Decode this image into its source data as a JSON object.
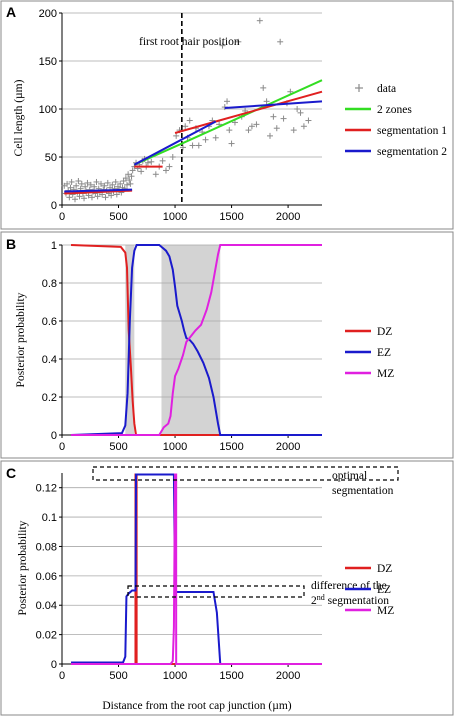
{
  "chart_data": [
    {
      "panel": "A",
      "type": "scatter",
      "ylabel": "Cell length (µm)",
      "xlim": [
        0,
        2300
      ],
      "ylim": [
        0,
        200
      ],
      "xticks": [
        0,
        500,
        1000,
        1500,
        2000
      ],
      "yticks": [
        0,
        50,
        100,
        150,
        200
      ],
      "grid": true,
      "legend_placement": "right",
      "annotation": "first root hair position",
      "vline_x": 1060,
      "scatter": {
        "name": "data",
        "color": "#8a8a8a",
        "points": [
          [
            20,
            20
          ],
          [
            35,
            12
          ],
          [
            45,
            22
          ],
          [
            55,
            15
          ],
          [
            65,
            8
          ],
          [
            75,
            18
          ],
          [
            85,
            24
          ],
          [
            95,
            11
          ],
          [
            105,
            16
          ],
          [
            115,
            6
          ],
          [
            125,
            20
          ],
          [
            135,
            13
          ],
          [
            145,
            25
          ],
          [
            155,
            9
          ],
          [
            165,
            17
          ],
          [
            175,
            22
          ],
          [
            185,
            12
          ],
          [
            195,
            7
          ],
          [
            205,
            19
          ],
          [
            215,
            14
          ],
          [
            225,
            23
          ],
          [
            235,
            10
          ],
          [
            245,
            16
          ],
          [
            255,
            21
          ],
          [
            265,
            8
          ],
          [
            275,
            14
          ],
          [
            285,
            19
          ],
          [
            295,
            12
          ],
          [
            305,
            24
          ],
          [
            315,
            9
          ],
          [
            325,
            17
          ],
          [
            335,
            13
          ],
          [
            345,
            22
          ],
          [
            355,
            11
          ],
          [
            365,
            16
          ],
          [
            375,
            20
          ],
          [
            385,
            8
          ],
          [
            395,
            15
          ],
          [
            405,
            23
          ],
          [
            415,
            12
          ],
          [
            425,
            18
          ],
          [
            435,
            10
          ],
          [
            445,
            21
          ],
          [
            455,
            14
          ],
          [
            465,
            17
          ],
          [
            475,
            24
          ],
          [
            485,
            11
          ],
          [
            495,
            19
          ],
          [
            505,
            15
          ],
          [
            515,
            22
          ],
          [
            525,
            13
          ],
          [
            535,
            18
          ],
          [
            545,
            25
          ],
          [
            555,
            17
          ],
          [
            565,
            28
          ],
          [
            575,
            21
          ],
          [
            585,
            32
          ],
          [
            595,
            26
          ],
          [
            605,
            22
          ],
          [
            615,
            30
          ],
          [
            625,
            36
          ],
          [
            640,
            40
          ],
          [
            655,
            44
          ],
          [
            670,
            38
          ],
          [
            685,
            42
          ],
          [
            700,
            35
          ],
          [
            715,
            46
          ],
          [
            730,
            48
          ],
          [
            745,
            40
          ],
          [
            760,
            44
          ],
          [
            790,
            45
          ],
          [
            830,
            32
          ],
          [
            860,
            40
          ],
          [
            890,
            46
          ],
          [
            920,
            36
          ],
          [
            950,
            40
          ],
          [
            980,
            50
          ],
          [
            1010,
            72
          ],
          [
            1040,
            78
          ],
          [
            1070,
            60
          ],
          [
            1090,
            82
          ],
          [
            1110,
            70
          ],
          [
            1130,
            88
          ],
          [
            1155,
            62
          ],
          [
            1185,
            80
          ],
          [
            1210,
            62
          ],
          [
            1240,
            76
          ],
          [
            1270,
            68
          ],
          [
            1300,
            82
          ],
          [
            1330,
            88
          ],
          [
            1360,
            70
          ],
          [
            1390,
            84
          ],
          [
            1420,
            166
          ],
          [
            1440,
            102
          ],
          [
            1460,
            108
          ],
          [
            1480,
            78
          ],
          [
            1500,
            64
          ],
          [
            1530,
            86
          ],
          [
            1560,
            170
          ],
          [
            1590,
            92
          ],
          [
            1620,
            98
          ],
          [
            1650,
            78
          ],
          [
            1680,
            82
          ],
          [
            1720,
            84
          ],
          [
            1750,
            192
          ],
          [
            1780,
            122
          ],
          [
            1810,
            108
          ],
          [
            1840,
            72
          ],
          [
            1870,
            92
          ],
          [
            1900,
            80
          ],
          [
            1930,
            170
          ],
          [
            1960,
            90
          ],
          [
            1990,
            106
          ],
          [
            2020,
            118
          ],
          [
            2050,
            78
          ],
          [
            2080,
            100
          ],
          [
            2110,
            96
          ],
          [
            2140,
            82
          ],
          [
            2180,
            88
          ]
        ]
      },
      "series": [
        {
          "name": "2 zones",
          "color": "#33dd22",
          "segments": [
            [
              [
                640,
                42
              ],
              [
                1060,
                64
              ],
              [
                2300,
                130
              ]
            ]
          ]
        },
        {
          "name": "segmentation 1",
          "color": "#e02020",
          "segments": [
            [
              [
                20,
                12
              ],
              [
                620,
                15
              ]
            ],
            [
              [
                640,
                40
              ],
              [
                890,
                40
              ]
            ],
            [
              [
                1000,
                75
              ],
              [
                1360,
                87
              ],
              [
                2300,
                118
              ]
            ]
          ]
        },
        {
          "name": "segmentation 2",
          "color": "#1a1acc",
          "segments": [
            [
              [
                20,
                14
              ],
              [
                620,
                16
              ]
            ],
            [
              [
                640,
                42
              ],
              [
                1360,
                87
              ]
            ],
            [
              [
                1440,
                101
              ],
              [
                2300,
                108
              ]
            ]
          ]
        }
      ]
    },
    {
      "panel": "B",
      "type": "line",
      "ylabel": "Posterior probability",
      "xlim": [
        0,
        2300
      ],
      "ylim": [
        0,
        1
      ],
      "xticks": [
        0,
        500,
        1000,
        1500,
        2000
      ],
      "yticks": [
        0,
        0.2,
        0.4,
        0.6,
        0.8,
        1
      ],
      "ytick_labels": [
        "0",
        "0.2",
        "0.4",
        "0.6",
        "0.8",
        "1"
      ],
      "grid": true,
      "legend_placement": "right",
      "shaded_regions": [
        [
          560,
          640
        ],
        [
          880,
          1400
        ]
      ],
      "series": [
        {
          "name": "DZ",
          "color": "#e02020",
          "points": [
            [
              80,
              1
            ],
            [
              520,
              0.99
            ],
            [
              560,
              0.96
            ],
            [
              575,
              0.88
            ],
            [
              590,
              0.55
            ],
            [
              610,
              0.35
            ],
            [
              625,
              0.18
            ],
            [
              640,
              0.06
            ],
            [
              655,
              0
            ],
            [
              2300,
              0
            ]
          ]
        },
        {
          "name": "EZ",
          "color": "#1a1acc",
          "points": [
            [
              80,
              0
            ],
            [
              530,
              0.01
            ],
            [
              560,
              0.05
            ],
            [
              580,
              0.22
            ],
            [
              600,
              0.6
            ],
            [
              620,
              0.88
            ],
            [
              640,
              0.97
            ],
            [
              660,
              1
            ],
            [
              860,
              1
            ],
            [
              880,
              0.99
            ],
            [
              920,
              0.97
            ],
            [
              950,
              0.94
            ],
            [
              980,
              0.87
            ],
            [
              1000,
              0.78
            ],
            [
              1020,
              0.68
            ],
            [
              1040,
              0.64
            ],
            [
              1060,
              0.6
            ],
            [
              1080,
              0.55
            ],
            [
              1100,
              0.51
            ],
            [
              1130,
              0.5
            ],
            [
              1160,
              0.48
            ],
            [
              1200,
              0.44
            ],
            [
              1250,
              0.38
            ],
            [
              1300,
              0.3
            ],
            [
              1340,
              0.2
            ],
            [
              1380,
              0.06
            ],
            [
              1400,
              0
            ],
            [
              2300,
              0
            ]
          ]
        },
        {
          "name": "MZ",
          "color": "#e020e0",
          "points": [
            [
              80,
              0
            ],
            [
              860,
              0
            ],
            [
              870,
              0.01
            ],
            [
              900,
              0.04
            ],
            [
              940,
              0.06
            ],
            [
              960,
              0.1
            ],
            [
              980,
              0.22
            ],
            [
              1000,
              0.31
            ],
            [
              1030,
              0.35
            ],
            [
              1070,
              0.42
            ],
            [
              1100,
              0.49
            ],
            [
              1140,
              0.52
            ],
            [
              1180,
              0.55
            ],
            [
              1230,
              0.58
            ],
            [
              1280,
              0.66
            ],
            [
              1320,
              0.75
            ],
            [
              1350,
              0.85
            ],
            [
              1380,
              0.95
            ],
            [
              1400,
              1
            ],
            [
              2300,
              1
            ]
          ]
        }
      ]
    },
    {
      "panel": "C",
      "type": "line",
      "xlabel": "Distance from the root cap junction (µm)",
      "ylabel": "Posterior probability",
      "xlim": [
        0,
        2300
      ],
      "ylim": [
        0,
        0.13
      ],
      "xticks": [
        0,
        500,
        1000,
        1500,
        2000
      ],
      "yticks": [
        0,
        0.02,
        0.04,
        0.06,
        0.08,
        0.1,
        0.12
      ],
      "ytick_labels": [
        "0",
        "0.02",
        "0.04",
        "0.06",
        "0.08",
        "0.1",
        "0.12"
      ],
      "grid": true,
      "legend_placement": "right",
      "annotations": [
        {
          "text": "optimal",
          "rows": 1
        },
        {
          "text": "segmentation",
          "rows": 1
        },
        {
          "text": "difference of the",
          "rows": 1
        },
        {
          "text": "2nd segmentation",
          "rows": 1
        }
      ],
      "series": [
        {
          "name": "DZ",
          "color": "#e02020",
          "points": [
            [
              80,
              0
            ],
            [
              650,
              0
            ],
            [
              650,
              0.129
            ],
            [
              660,
              0.129
            ],
            [
              660,
              0
            ],
            [
              2300,
              0
            ]
          ]
        },
        {
          "name": "EZ",
          "color": "#1a1acc",
          "points": [
            [
              80,
              0.001
            ],
            [
              540,
              0.001
            ],
            [
              560,
              0.005
            ],
            [
              570,
              0.046
            ],
            [
              590,
              0.048
            ],
            [
              620,
              0.05
            ],
            [
              650,
              0.05
            ],
            [
              655,
              0.129
            ],
            [
              990,
              0.129
            ],
            [
              1000,
              0.049
            ],
            [
              1340,
              0.049
            ],
            [
              1370,
              0.035
            ],
            [
              1400,
              0
            ],
            [
              2300,
              0
            ]
          ]
        },
        {
          "name": "MZ",
          "color": "#e020e0",
          "points": [
            [
              80,
              0
            ],
            [
              960,
              0
            ],
            [
              980,
              0.002
            ],
            [
              990,
              0.025
            ],
            [
              1000,
              0.129
            ],
            [
              1010,
              0.129
            ],
            [
              1010,
              0
            ],
            [
              2300,
              0
            ]
          ]
        }
      ]
    }
  ],
  "labels": {
    "panel_a": "A",
    "panel_b": "B",
    "panel_c": "C",
    "annotation_a": "first root hair position",
    "annotation_c1": "optimal",
    "annotation_c2": "segmentation",
    "annotation_c3": "difference of the",
    "annotation_c4_sup": "nd",
    "annotation_c4_pre": "2",
    "annotation_c4_post": " segmentation",
    "legend_a": [
      "data",
      "2 zones",
      "segmentation 1",
      "segmentation 2"
    ],
    "legend_bc": [
      "DZ",
      "EZ",
      "MZ"
    ],
    "ylabel_a": "Cell length (µm)",
    "ylabel_b": "Posterior probability",
    "ylabel_c": "Posterior probability",
    "xlabel_c": "Distance from the root cap junction (µm)"
  }
}
